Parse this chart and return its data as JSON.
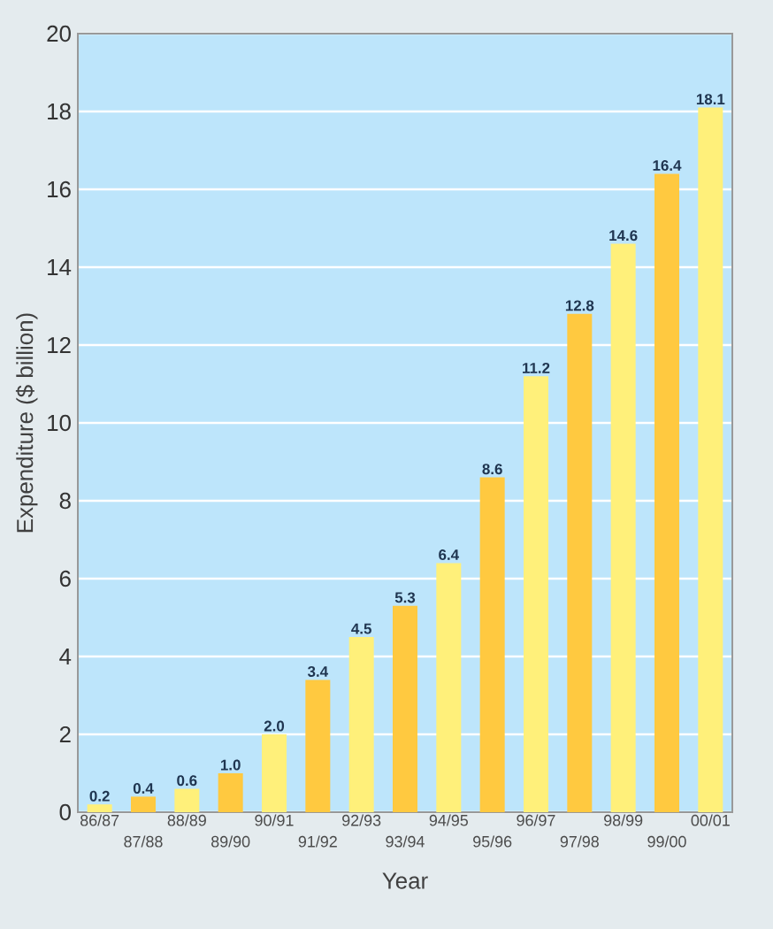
{
  "chart_data": {
    "type": "bar",
    "xlabel": "Year",
    "ylabel": "Expenditure ($ billion)",
    "categories": [
      "86/87",
      "87/88",
      "88/89",
      "89/90",
      "90/91",
      "91/92",
      "92/93",
      "93/94",
      "94/95",
      "95/96",
      "96/97",
      "97/98",
      "98/99",
      "99/00",
      "00/01"
    ],
    "values": [
      0.2,
      0.4,
      0.6,
      1.0,
      2.0,
      3.4,
      4.5,
      5.3,
      6.4,
      8.6,
      11.2,
      12.8,
      14.6,
      16.4,
      18.1
    ],
    "value_labels": [
      "0.2",
      "0.4",
      "0.6",
      "1.0",
      "2.0",
      "3.4",
      "4.5",
      "5.3",
      "6.4",
      "8.6",
      "11.2",
      "12.8",
      "14.6",
      "16.4",
      "18.1"
    ],
    "colors": [
      "#fff07a",
      "#ffc940",
      "#fff07a",
      "#ffc940",
      "#fff07a",
      "#ffc940",
      "#fff07a",
      "#ffc940",
      "#fff07a",
      "#ffc940",
      "#fff07a",
      "#ffc940",
      "#fff07a",
      "#ffc940",
      "#fff07a"
    ],
    "ylim": [
      0,
      20
    ],
    "yticks": [
      0,
      2,
      4,
      6,
      8,
      10,
      12,
      14,
      16,
      18,
      20
    ],
    "grid": "y"
  }
}
